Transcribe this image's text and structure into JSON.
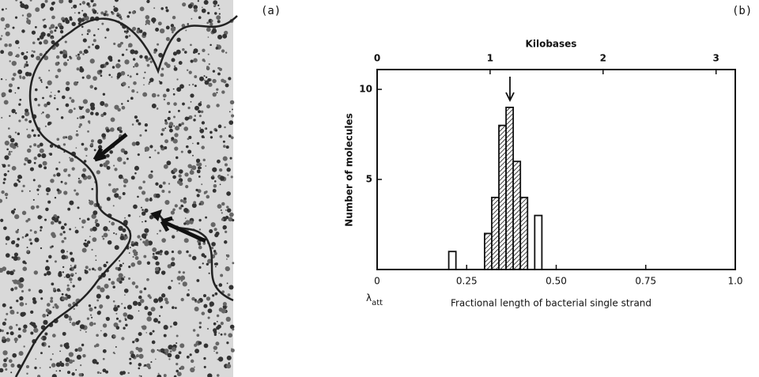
{
  "panel_labels": [
    "(a)",
    "(b)"
  ],
  "chart_data": {
    "type": "histogram",
    "x_label": "Fractional length of bacterial single strand",
    "x2_label": "Kilobases",
    "y_label": "Number of molecules",
    "x_origin_label": {
      "symbol": "λ",
      "subscript": "att"
    },
    "bins": [
      0.2,
      0.22,
      0.24,
      0.26,
      0.28,
      0.3,
      0.32,
      0.34,
      0.36,
      0.38,
      0.4,
      0.42,
      0.44,
      0.46
    ],
    "values": [
      1,
      0,
      0,
      0,
      0,
      2,
      4,
      8,
      9,
      6,
      4,
      0,
      3
    ],
    "styles": [
      "open",
      "open",
      "open",
      "open",
      "open",
      "hatched",
      "hatched",
      "hatched",
      "hatched",
      "hatched",
      "hatched",
      "open",
      "open"
    ],
    "xlim": [
      0,
      1
    ],
    "xticks": [
      0,
      0.25,
      {
        "value": 0.5,
        "label": "0.50"
      },
      0.75,
      {
        "value": 1,
        "label": "1.0"
      }
    ],
    "x2lim": [
      0,
      3.17
    ],
    "x2ticks": [
      0,
      1,
      2,
      3
    ],
    "ylim": [
      0,
      11.1
    ],
    "yticks": [
      5,
      10
    ],
    "color": "#111111"
  }
}
